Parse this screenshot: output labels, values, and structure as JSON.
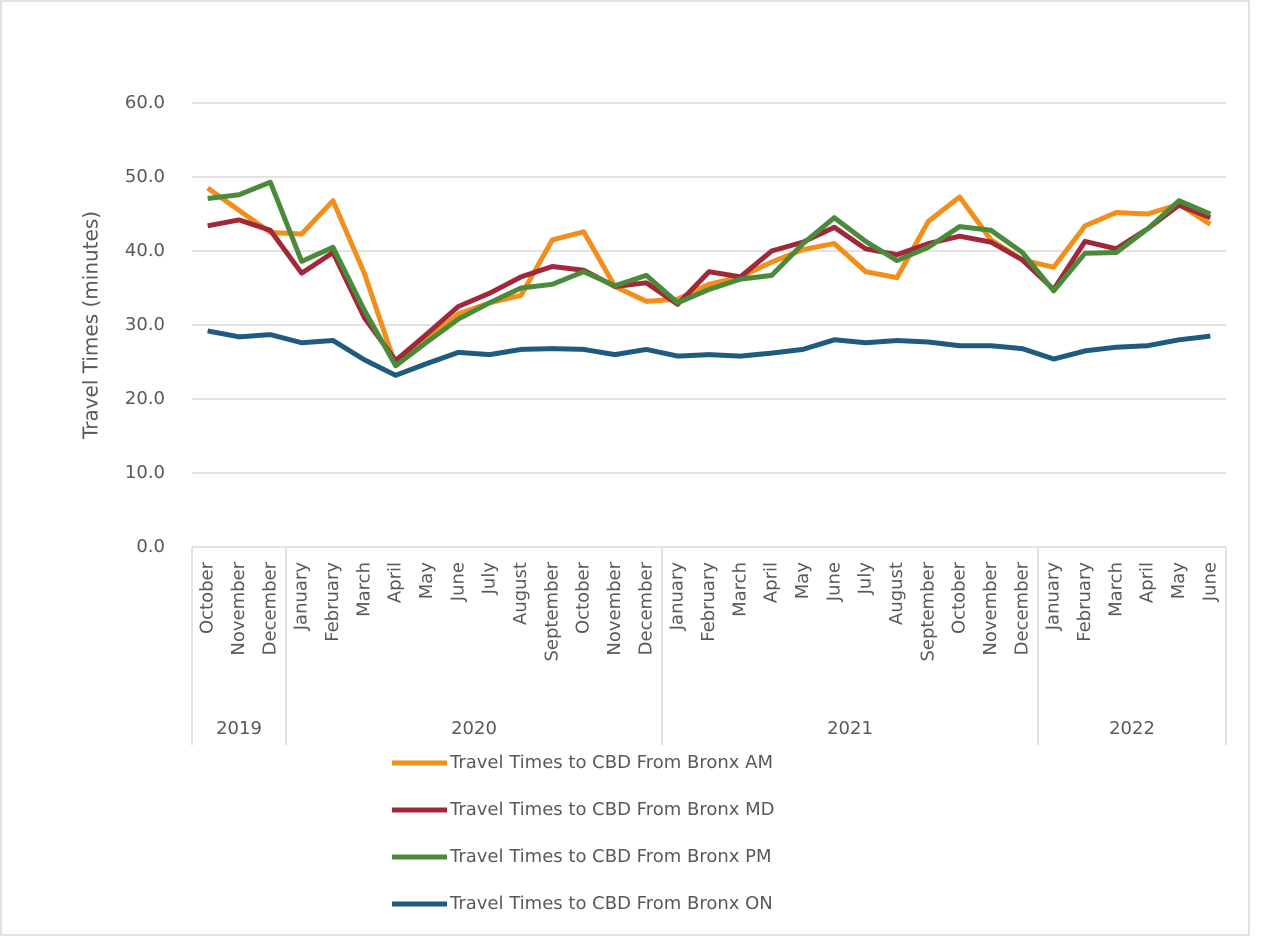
{
  "chart_data": {
    "type": "line",
    "y_axis_label": "Travel Times (minutes)",
    "category_groups": [
      {
        "label": "2019",
        "categories": [
          "October",
          "November",
          "December"
        ]
      },
      {
        "label": "2020",
        "categories": [
          "January",
          "February",
          "March",
          "April",
          "May",
          "June",
          "July",
          "August",
          "September",
          "October",
          "November",
          "December"
        ]
      },
      {
        "label": "2021",
        "categories": [
          "January",
          "February",
          "March",
          "April",
          "May",
          "June",
          "July",
          "August",
          "September",
          "October",
          "November",
          "December"
        ]
      },
      {
        "label": "2022",
        "categories": [
          "January",
          "February",
          "March",
          "April",
          "May",
          "June"
        ]
      }
    ],
    "series": [
      {
        "name": "Travel Times to CBD From Bronx AM",
        "color": "#f28e1c",
        "values": [
          48.5,
          45.5,
          42.5,
          42.3,
          46.8,
          37,
          24.5,
          28,
          31.5,
          33,
          34,
          41.5,
          42.6,
          35.2,
          33.2,
          33.5,
          35.5,
          36.5,
          38.5,
          40.2,
          41,
          37.2,
          36.4,
          44,
          47.3,
          41.5,
          38.8,
          37.8,
          43.4,
          45.2,
          45,
          46.3,
          43.6
        ]
      },
      {
        "name": "Travel Times to CBD From Bronx MD",
        "color": "#a1283a",
        "values": [
          43.4,
          44.2,
          42.8,
          37,
          39.8,
          31,
          25.2,
          28.8,
          32.5,
          34.3,
          36.5,
          37.9,
          37.4,
          35.2,
          35.7,
          32.8,
          37.2,
          36.5,
          40,
          41.2,
          43.2,
          40.3,
          39.5,
          41,
          42,
          41.2,
          38.8,
          34.8,
          41.3,
          40.3,
          43,
          46.2,
          44.5
        ]
      },
      {
        "name": "Travel Times to CBD From Bronx PM",
        "color": "#4a8b3b",
        "values": [
          47.1,
          47.6,
          49.3,
          38.6,
          40.5,
          32,
          24.5,
          27.7,
          30.8,
          33,
          35,
          35.5,
          37.2,
          35.3,
          36.7,
          33,
          34.8,
          36.2,
          36.7,
          41,
          44.5,
          41.3,
          38.7,
          40.5,
          43.3,
          42.8,
          39.8,
          34.6,
          39.7,
          39.8,
          43,
          46.8,
          45
        ]
      },
      {
        "name": "Travel Times to CBD From Bronx ON",
        "color": "#1f5a7f",
        "values": [
          29.2,
          28.4,
          28.7,
          27.6,
          27.9,
          25.3,
          23.2,
          24.8,
          26.3,
          26,
          26.7,
          26.8,
          26.7,
          26,
          26.7,
          25.8,
          26,
          25.8,
          26.2,
          26.7,
          28,
          27.6,
          27.9,
          27.7,
          27.2,
          27.2,
          26.8,
          25.4,
          26.5,
          27,
          27.2,
          28,
          28.5
        ]
      }
    ],
    "ylim": [
      0,
      60
    ],
    "yticks": [
      {
        "value": 0,
        "label": "0.0"
      },
      {
        "value": 10,
        "label": "10.0"
      },
      {
        "value": 20,
        "label": "20.0"
      },
      {
        "value": 30,
        "label": "30.0"
      },
      {
        "value": 40,
        "label": "40.0"
      },
      {
        "value": 50,
        "label": "50.0"
      },
      {
        "value": 60,
        "label": "60.0"
      }
    ],
    "grid": true
  }
}
